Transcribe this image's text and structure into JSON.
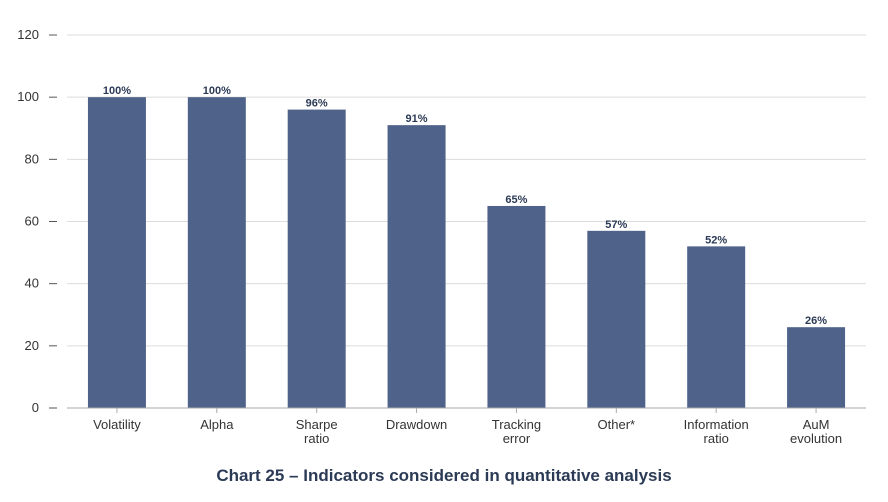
{
  "chart_data": {
    "type": "bar",
    "title": "Chart 25 – Indicators considered in quantitative analysis",
    "categories": [
      [
        "Volatility"
      ],
      [
        "Alpha"
      ],
      [
        "Sharpe",
        "ratio"
      ],
      [
        "Drawdown"
      ],
      [
        "Tracking",
        "error"
      ],
      [
        "Other*"
      ],
      [
        "Information",
        "ratio"
      ],
      [
        "AuM",
        "evolution"
      ]
    ],
    "values": [
      100,
      100,
      96,
      91,
      65,
      57,
      52,
      26
    ],
    "data_labels": [
      "100%",
      "100%",
      "96%",
      "91%",
      "65%",
      "57%",
      "52%",
      "26%"
    ],
    "ylim": [
      0,
      120
    ],
    "yticks": [
      0,
      20,
      40,
      60,
      80,
      100,
      120
    ],
    "grid": true,
    "colors": {
      "bar": "#4f638a",
      "grid": "#dcdcdc",
      "axis": "#aaaaaa",
      "title": "#2b3a55"
    }
  }
}
